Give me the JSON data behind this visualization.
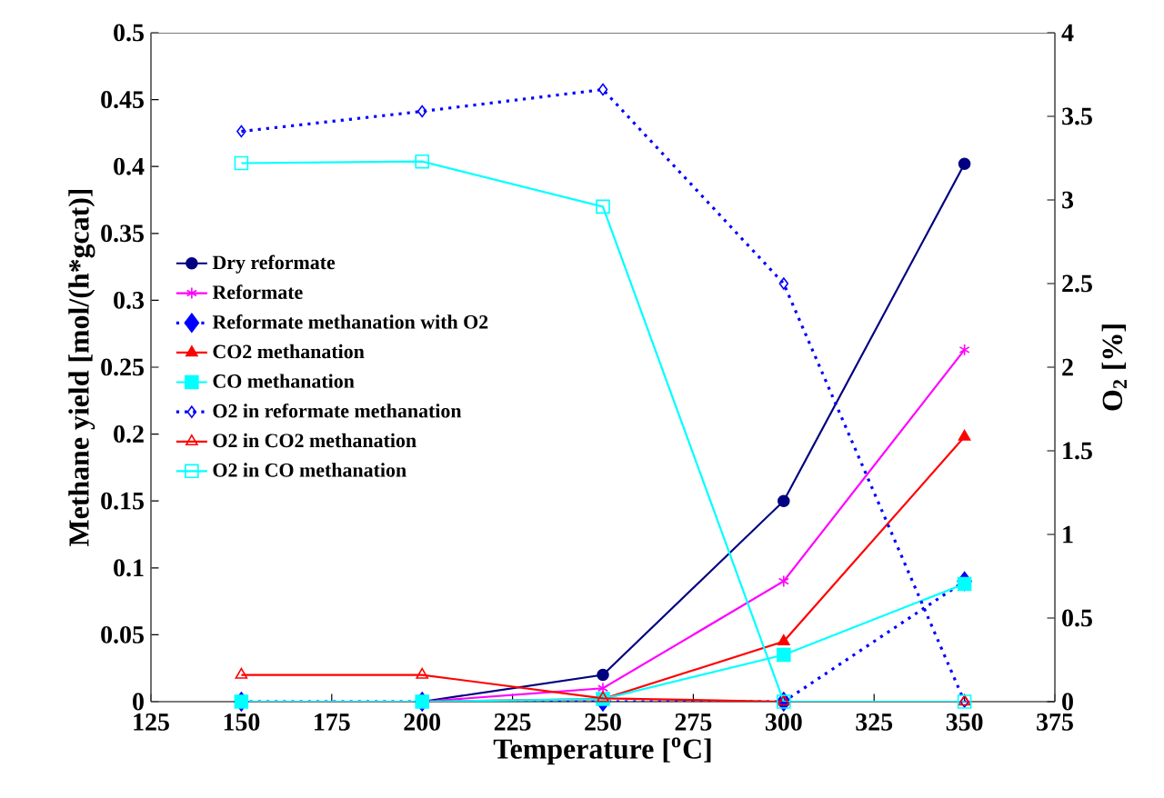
{
  "chart_data": {
    "type": "line",
    "xlabel": "Temperature [$^{o}$C]",
    "ylabel": "Methane yield [mol/(h*gcat)]",
    "y2label": "O$_{2}$ [%]",
    "x": [
      150,
      200,
      250,
      300,
      350
    ],
    "xlim": [
      125,
      375
    ],
    "xticks": [
      125,
      150,
      175,
      200,
      225,
      250,
      275,
      300,
      325,
      350,
      375
    ],
    "ylim": [
      0,
      0.5
    ],
    "yticks": [
      0,
      0.05,
      0.1,
      0.15,
      0.2,
      0.25,
      0.3,
      0.35,
      0.4,
      0.45,
      0.5
    ],
    "y2lim": [
      0,
      4
    ],
    "y2ticks": [
      0,
      0.5,
      1,
      1.5,
      2,
      2.5,
      3,
      3.5,
      4
    ],
    "grid": false,
    "legend": "left",
    "series": [
      {
        "name": "Dry reformate",
        "color": "#000080",
        "marker": "circle",
        "line_style": "solid",
        "values": [
          0,
          0,
          0.02,
          0.15,
          0.402
        ]
      },
      {
        "name": "Reformate",
        "color": "#ff00ff",
        "marker": "cross",
        "line_style": "solid",
        "values": [
          0,
          0,
          0.01,
          0.09,
          0.263
        ]
      },
      {
        "name": "Reformate methanation with O2",
        "color": "#0000ff",
        "marker": "diamond",
        "line_style": "dotted",
        "values": [
          0,
          0,
          0,
          0,
          0.09
        ]
      },
      {
        "name": "CO2 methanation",
        "color": "#ff0000",
        "marker": "triangle",
        "line_style": "solid",
        "values": [
          0,
          0,
          0.002,
          0.045,
          0.198
        ]
      },
      {
        "name": "CO methanation",
        "color": "#00ffff",
        "marker": "square",
        "line_style": "solid",
        "values": [
          0,
          0,
          0.002,
          0.035,
          0.088
        ]
      },
      {
        "name": "O2 in reformate methanation",
        "color": "#0000ff",
        "marker": "diamond",
        "line_style": "dotted",
        "axis": "y2",
        "values": [
          3.41,
          3.53,
          3.66,
          2.5,
          0
        ]
      },
      {
        "name": "O2 in CO2 methanation",
        "color": "#ff0000",
        "marker": "triangle",
        "line_style": "solid",
        "axis": "y2",
        "values": [
          0.16,
          0.16,
          0.02,
          0,
          0
        ]
      },
      {
        "name": "O2 in CO methanation",
        "color": "#00ffff",
        "marker": "square",
        "line_style": "solid",
        "axis": "y2",
        "values": [
          3.22,
          3.23,
          2.96,
          0,
          0
        ]
      }
    ]
  }
}
